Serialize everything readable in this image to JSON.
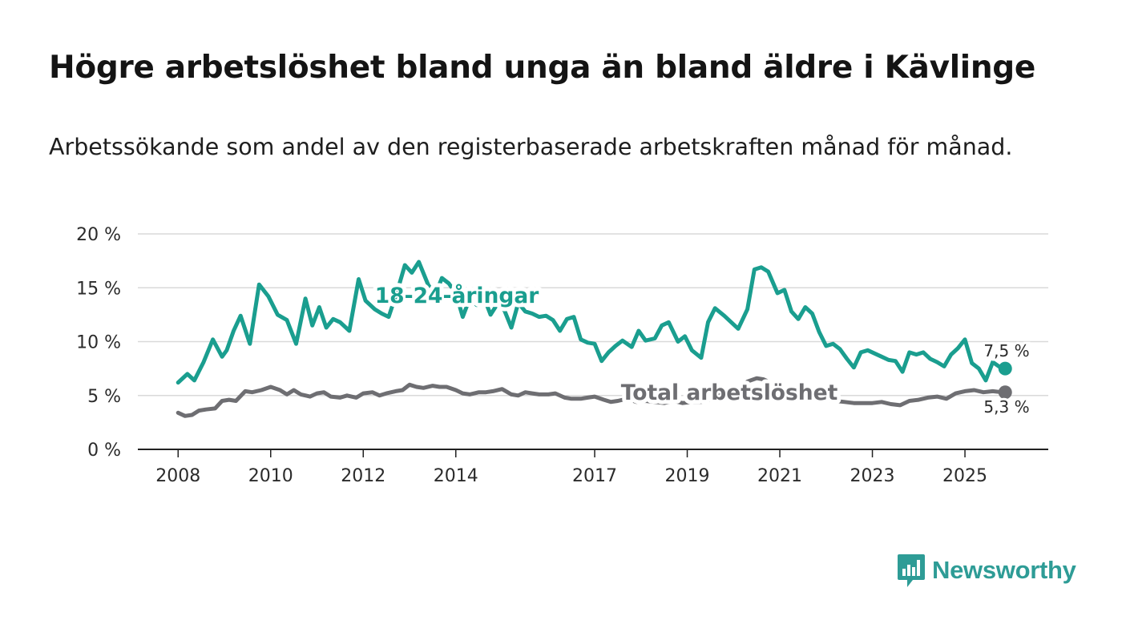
{
  "title": "Högre arbetslöshet bland unga än bland äldre i Kävlinge",
  "subtitle": "Arbetssökande som andel av den registerbaserade arbetskraften månad för månad.",
  "brand": {
    "name": "Newsworthy",
    "color": "#2e9c96",
    "icon": "newsworthy-logo-icon"
  },
  "chart_data": {
    "type": "line",
    "title": "Högre arbetslöshet bland unga än bland äldre i Kävlinge",
    "xlabel": "",
    "ylabel": "",
    "ylim": [
      0,
      20
    ],
    "yticks": [
      "0 %",
      "5 %",
      "10 %",
      "15 %",
      "20 %"
    ],
    "xticks": [
      "2008",
      "2010",
      "2012",
      "2014",
      "2017",
      "2019",
      "2021",
      "2023",
      "2025"
    ],
    "xtick_years": [
      2008,
      2010,
      2012,
      2014,
      2017,
      2019,
      2021,
      2023,
      2025
    ],
    "xlim": [
      2007.13,
      2026.8
    ],
    "grid": true,
    "series": [
      {
        "name": "18-24-åringar",
        "label": "18-24-åringar",
        "color": "#1a9e8f",
        "end_label": "7,5 %",
        "end_value": 7.5,
        "x": [
          2008.0,
          2008.2,
          2008.35,
          2008.55,
          2008.75,
          2008.95,
          2009.05,
          2009.2,
          2009.35,
          2009.55,
          2009.75,
          2009.95,
          2010.15,
          2010.35,
          2010.55,
          2010.75,
          2010.9,
          2011.05,
          2011.2,
          2011.35,
          2011.5,
          2011.7,
          2011.9,
          2012.05,
          2012.25,
          2012.4,
          2012.55,
          2012.75,
          2012.9,
          2013.05,
          2013.2,
          2013.4,
          2013.55,
          2013.7,
          2013.85,
          2014.0,
          2014.15,
          2014.3,
          2014.45,
          2014.6,
          2014.75,
          2014.9,
          2015.05,
          2015.2,
          2015.35,
          2015.5,
          2015.65,
          2015.8,
          2015.95,
          2016.1,
          2016.25,
          2016.4,
          2016.55,
          2016.7,
          2016.85,
          2017.0,
          2017.15,
          2017.3,
          2017.45,
          2017.6,
          2017.8,
          2017.95,
          2018.1,
          2018.3,
          2018.45,
          2018.6,
          2018.8,
          2018.95,
          2019.1,
          2019.3,
          2019.45,
          2019.6,
          2019.8,
          2019.95,
          2020.1,
          2020.3,
          2020.45,
          2020.6,
          2020.75,
          2020.95,
          2021.1,
          2021.25,
          2021.4,
          2021.55,
          2021.7,
          2021.85,
          2022.0,
          2022.15,
          2022.3,
          2022.45,
          2022.6,
          2022.75,
          2022.9,
          2023.05,
          2023.2,
          2023.35,
          2023.5,
          2023.65,
          2023.8,
          2023.95,
          2024.1,
          2024.25,
          2024.4,
          2024.55,
          2024.7,
          2024.85,
          2025.0,
          2025.15,
          2025.3,
          2025.45,
          2025.6,
          2025.8
        ],
        "values": [
          6.2,
          7.0,
          6.4,
          8.1,
          10.2,
          8.6,
          9.2,
          11.0,
          12.4,
          9.8,
          15.3,
          14.2,
          12.5,
          12.0,
          9.8,
          14.0,
          11.5,
          13.2,
          11.3,
          12.1,
          11.8,
          11.0,
          15.8,
          13.8,
          13.0,
          12.6,
          12.3,
          14.9,
          17.1,
          16.4,
          17.4,
          15.3,
          14.3,
          15.9,
          15.4,
          14.5,
          12.3,
          14.0,
          13.4,
          14.2,
          12.5,
          13.5,
          12.9,
          11.3,
          13.6,
          12.8,
          12.6,
          12.3,
          12.4,
          12.0,
          11.0,
          12.1,
          12.3,
          10.2,
          9.9,
          9.8,
          8.2,
          9.0,
          9.6,
          10.1,
          9.5,
          11.0,
          10.1,
          10.3,
          11.5,
          11.8,
          10.0,
          10.5,
          9.2,
          8.5,
          11.8,
          13.1,
          12.4,
          11.8,
          11.2,
          13.0,
          16.7,
          16.9,
          16.5,
          14.5,
          14.8,
          12.8,
          12.1,
          13.2,
          12.6,
          10.9,
          9.6,
          9.8,
          9.3,
          8.4,
          7.6,
          9.0,
          9.2,
          8.9,
          8.6,
          8.3,
          8.2,
          7.2,
          9.0,
          8.8,
          9.0,
          8.4,
          8.1,
          7.7,
          8.8,
          9.4,
          10.2,
          8.0,
          7.5,
          6.4,
          8.1,
          7.5
        ]
      },
      {
        "name": "Total arbetslöshet",
        "label": "Total arbetslöshet",
        "color": "#6e6e72",
        "end_label": "5,3 %",
        "end_value": 5.3,
        "x": [
          2008.0,
          2008.15,
          2008.3,
          2008.45,
          2008.6,
          2008.8,
          2008.95,
          2009.1,
          2009.25,
          2009.45,
          2009.6,
          2009.8,
          2010.0,
          2010.2,
          2010.35,
          2010.5,
          2010.65,
          2010.85,
          2011.0,
          2011.15,
          2011.3,
          2011.5,
          2011.65,
          2011.85,
          2012.0,
          2012.2,
          2012.35,
          2012.5,
          2012.7,
          2012.85,
          2013.0,
          2013.15,
          2013.3,
          2013.5,
          2013.65,
          2013.8,
          2014.0,
          2014.15,
          2014.3,
          2014.5,
          2014.65,
          2014.8,
          2015.0,
          2015.2,
          2015.35,
          2015.5,
          2015.65,
          2015.8,
          2016.0,
          2016.15,
          2016.35,
          2016.5,
          2016.7,
          2016.85,
          2017.0,
          2017.2,
          2017.35,
          2017.5,
          2017.7,
          2017.9,
          2018.1,
          2018.3,
          2018.5,
          2018.7,
          2018.9,
          2019.1,
          2019.3,
          2019.5,
          2019.7,
          2019.9,
          2020.1,
          2020.3,
          2020.5,
          2020.65,
          2020.8,
          2021.0,
          2021.2,
          2021.4,
          2021.6,
          2021.8,
          2022.0,
          2022.2,
          2022.4,
          2022.6,
          2022.8,
          2023.0,
          2023.2,
          2023.4,
          2023.6,
          2023.8,
          2024.0,
          2024.2,
          2024.4,
          2024.6,
          2024.8,
          2025.0,
          2025.2,
          2025.4,
          2025.6,
          2025.8
        ],
        "values": [
          3.4,
          3.1,
          3.2,
          3.6,
          3.7,
          3.8,
          4.5,
          4.6,
          4.5,
          5.4,
          5.3,
          5.5,
          5.8,
          5.5,
          5.1,
          5.5,
          5.1,
          4.9,
          5.2,
          5.3,
          4.9,
          4.8,
          5.0,
          4.8,
          5.2,
          5.3,
          5.0,
          5.2,
          5.4,
          5.5,
          6.0,
          5.8,
          5.7,
          5.9,
          5.8,
          5.8,
          5.5,
          5.2,
          5.1,
          5.3,
          5.3,
          5.4,
          5.6,
          5.1,
          5.0,
          5.3,
          5.2,
          5.1,
          5.1,
          5.2,
          4.8,
          4.7,
          4.7,
          4.8,
          4.9,
          4.6,
          4.4,
          4.5,
          4.7,
          4.4,
          4.5,
          4.4,
          4.3,
          4.5,
          4.3,
          4.4,
          4.4,
          4.6,
          5.0,
          5.0,
          5.4,
          6.3,
          6.6,
          6.5,
          6.2,
          5.7,
          5.2,
          4.9,
          4.8,
          4.6,
          4.6,
          4.5,
          4.4,
          4.3,
          4.3,
          4.3,
          4.4,
          4.2,
          4.1,
          4.5,
          4.6,
          4.8,
          4.9,
          4.7,
          5.2,
          5.4,
          5.5,
          5.3,
          5.4,
          5.3
        ]
      }
    ]
  }
}
